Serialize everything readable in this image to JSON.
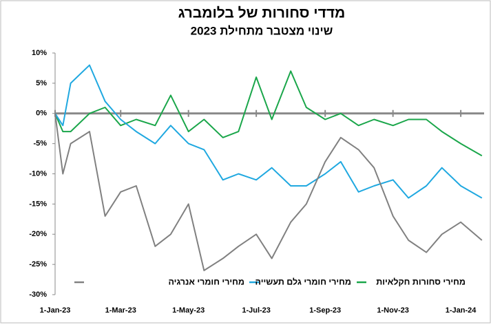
{
  "chart_data": {
    "type": "line",
    "title": "מדדי סחורות של בלומברג",
    "subtitle": "שינוי מצטבר מתחילת 2023",
    "x": [
      "2023-01-01",
      "2023-01-08",
      "2023-01-15",
      "2023-02-01",
      "2023-02-15",
      "2023-03-01",
      "2023-03-15",
      "2023-04-01",
      "2023-04-15",
      "2023-05-01",
      "2023-05-15",
      "2023-06-01",
      "2023-06-15",
      "2023-07-01",
      "2023-07-15",
      "2023-08-01",
      "2023-08-15",
      "2023-09-01",
      "2023-09-15",
      "2023-10-01",
      "2023-10-15",
      "2023-11-01",
      "2023-11-15",
      "2023-12-01",
      "2023-12-15",
      "2024-01-01",
      "2024-01-20"
    ],
    "series": [
      {
        "name": "מחירי סחורות חקלאיות",
        "color": "#1aa64a",
        "values": [
          0,
          -3,
          -3,
          0,
          1,
          -2,
          -1,
          -2,
          3,
          -3,
          -1,
          -4,
          -3,
          6,
          -1,
          7,
          1,
          -1,
          0,
          -2,
          -1,
          -2,
          -1,
          -1,
          -3,
          -5,
          -7
        ]
      },
      {
        "name": "מחירי חומרי גלם תעשייה",
        "color": "#1fa8e0",
        "values": [
          0,
          -2,
          5,
          8,
          2,
          -1,
          -3,
          -5,
          -2,
          -5,
          -6,
          -11,
          -10,
          -11,
          -9,
          -12,
          -12,
          -10,
          -8,
          -13,
          -12,
          -11,
          -14,
          -12,
          -9,
          -12,
          -14
        ]
      },
      {
        "name": "מחירי חומרי אנרגיה",
        "color": "#808080",
        "values": [
          0,
          -10,
          -5,
          -3,
          -17,
          -13,
          -12,
          -22,
          -20,
          -15,
          -26,
          -24,
          -22,
          -20,
          -24,
          -18,
          -15,
          -8,
          -4,
          -6,
          -9,
          -17,
          -21,
          -23,
          -20,
          -18,
          -21
        ]
      }
    ],
    "xlim": [
      "2023-01-01",
      "2024-01-22"
    ],
    "xticks": [
      {
        "value": "2023-01-01",
        "label": "1-Jan-23"
      },
      {
        "value": "2023-03-01",
        "label": "1-Mar-23"
      },
      {
        "value": "2023-05-01",
        "label": "1-May-23"
      },
      {
        "value": "2023-07-01",
        "label": "1-Jul-23"
      },
      {
        "value": "2023-09-01",
        "label": "1-Sep-23"
      },
      {
        "value": "2023-11-01",
        "label": "1-Nov-23"
      },
      {
        "value": "2024-01-01",
        "label": "1-Jan-24"
      }
    ],
    "ylim": [
      -30,
      10
    ],
    "yticks": [
      {
        "value": -30,
        "label": "-30%"
      },
      {
        "value": -25,
        "label": "-25%"
      },
      {
        "value": -20,
        "label": "-20%"
      },
      {
        "value": -15,
        "label": "-15%"
      },
      {
        "value": -10,
        "label": "-10%"
      },
      {
        "value": -5,
        "label": "-5%"
      },
      {
        "value": 0,
        "label": "0%"
      },
      {
        "value": 5,
        "label": "5%"
      },
      {
        "value": 10,
        "label": "10%"
      }
    ],
    "grid": false
  }
}
